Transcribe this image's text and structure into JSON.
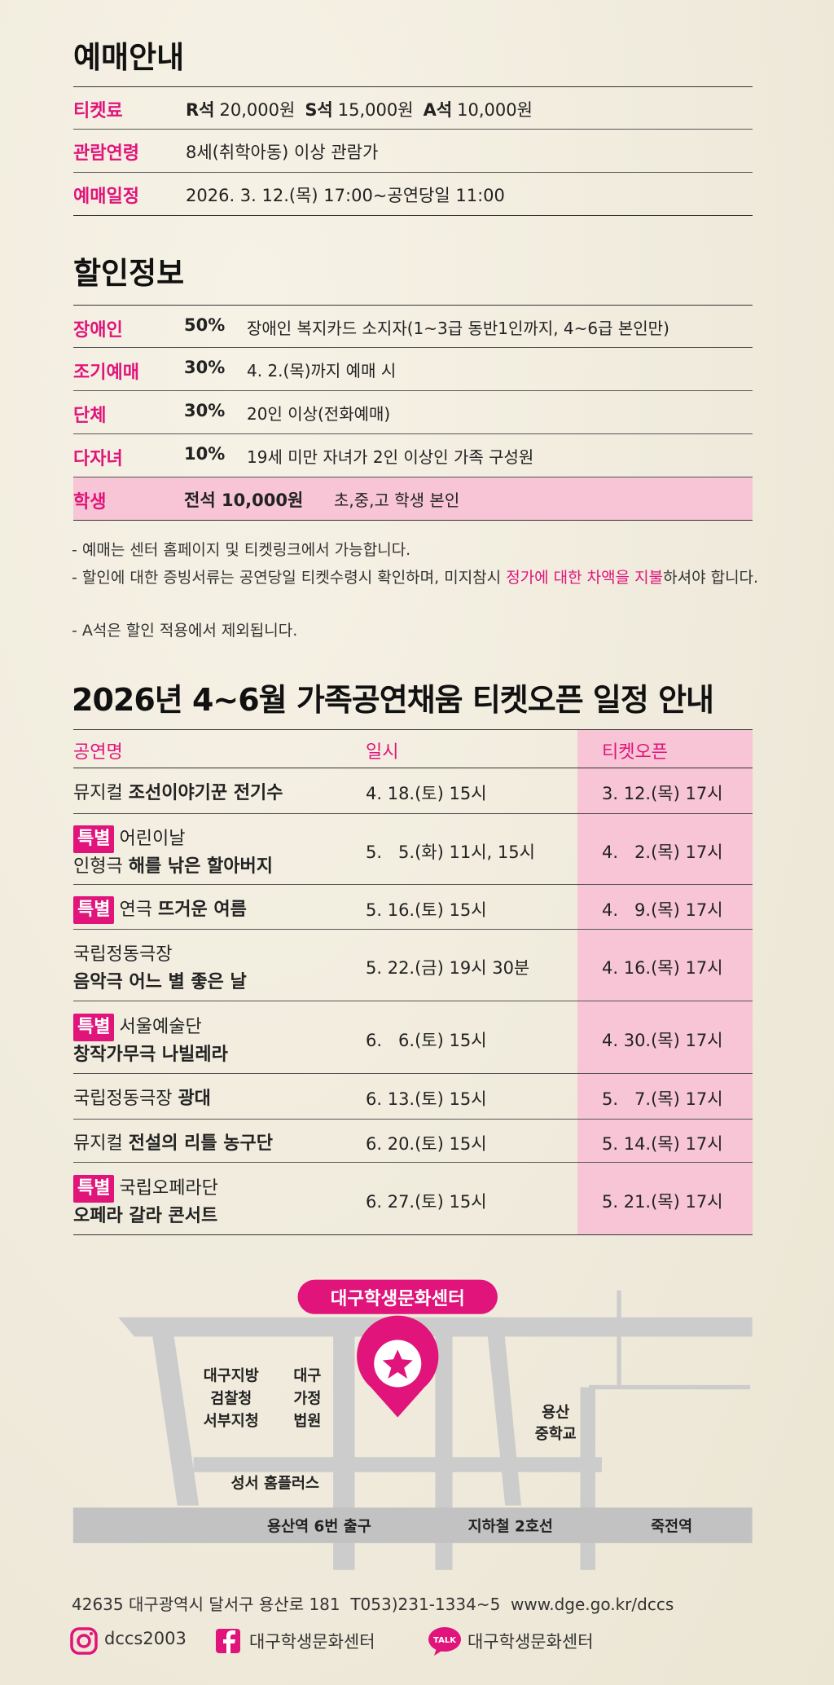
{
  "booking": {
    "title": "예매안내",
    "rows": [
      {
        "label": "티켓료",
        "prices": [
          {
            "seat": "R석",
            "price": "20,000원"
          },
          {
            "seat": "S석",
            "price": "15,000원"
          },
          {
            "seat": "A석",
            "price": "10,000원"
          }
        ]
      },
      {
        "label": "관람연령",
        "text": "8세(취학아동) 이상 관람가"
      },
      {
        "label": "예매일정",
        "text": "2026. 3. 12.(목) 17:00~공연당일 11:00"
      }
    ]
  },
  "discount": {
    "title": "할인정보",
    "rows": [
      {
        "label": "장애인",
        "rate": "50%",
        "desc": "장애인 복지카드 소지자(1~3급 동반1인까지, 4~6급 본인만)"
      },
      {
        "label": "조기예매",
        "rate": "30%",
        "desc": "4. 2.(목)까지 예매 시"
      },
      {
        "label": "단체",
        "rate": "30%",
        "desc": "20인 이상(전화예매)"
      },
      {
        "label": "다자녀",
        "rate": "10%",
        "desc": "19세 미만 자녀가 2인 이상인 가족 구성원"
      },
      {
        "label": "학생",
        "rate": "전석 10,000원",
        "desc": "초,중,고 학생 본인"
      }
    ]
  },
  "notes": {
    "line1": "- 예매는 센터 홈페이지 및 티켓링크에서 가능합니다.",
    "line2_start": "- 할인에 대한 증빙서류는 공연당일 티켓수령시 확인하며, 미지참시 ",
    "line2_highlight": "정가에 대한 차액을 지불",
    "line2_end": "하셔야 합니다.",
    "line3": "- A석은 할인 적용에서 제외됩니다."
  },
  "schedule": {
    "title": "2026년 4~6월 가족공연채움 티켓오픈 일정 안내",
    "headers": [
      "공연명",
      "일시",
      "티켓오픈"
    ],
    "badge": "특별",
    "rows": [
      {
        "special": false,
        "line1": "뮤지컬 ",
        "bold": "조선이야기꾼 전기수",
        "date": "4. 18.(토) 15시",
        "open": "3. 12.(목) 17시"
      },
      {
        "special": true,
        "line1": "어린이날",
        "line2": "인형극 ",
        "bold": "해를 낚은 할아버지",
        "date": "5.   5.(화) 11시, 15시",
        "open": "4.   2.(목) 17시"
      },
      {
        "special": true,
        "line1": "연극 ",
        "bold": "뜨거운 여름",
        "date": "5. 16.(토) 15시",
        "open": "4.   9.(목) 17시"
      },
      {
        "special": false,
        "line1": "국립정동극장",
        "line2": "",
        "bold": "음악극 어느 별 좋은 날",
        "date": "5. 22.(금) 19시 30분",
        "open": "4. 16.(목) 17시"
      },
      {
        "special": true,
        "line1": "서울예술단",
        "line2": "",
        "bold": "창작가무극 나빌레라",
        "date": "6.   6.(토) 15시",
        "open": "4. 30.(목) 17시"
      },
      {
        "special": false,
        "line1": "국립정동극장 ",
        "bold": "광대",
        "date": "6. 13.(토) 15시",
        "open": "5.   7.(목) 17시"
      },
      {
        "special": false,
        "line1": "뮤지컬 ",
        "bold": "전설의 리틀 농구단",
        "date": "6. 20.(토) 15시",
        "open": "5. 14.(목) 17시"
      },
      {
        "special": true,
        "line1": "국립오페라단",
        "line2": "",
        "bold": "오페라 갈라 콘서트",
        "date": "6. 27.(토) 15시",
        "open": "5. 21.(목) 17시"
      }
    ]
  },
  "map": {
    "center": "대구학생문화센터",
    "prosecutor": [
      "대구지방",
      "검찰청",
      "서부지청"
    ],
    "court": [
      "대구",
      "가정",
      "법원"
    ],
    "school": [
      "용산",
      "중학교"
    ],
    "homeplus": "성서 홈플러스",
    "exit": "용산역 6번 출구",
    "subway": "지하철 2호선",
    "station": "죽전역"
  },
  "footer": {
    "address": "42635 대구광역시 달서구 용산로 181  T053)231-1334~5  www.dge.go.kr/dccs",
    "instagram": "dccs2003",
    "facebook": "대구학생문화센터",
    "talk_icon": "TALK",
    "kakao": "대구학생문화센터"
  }
}
